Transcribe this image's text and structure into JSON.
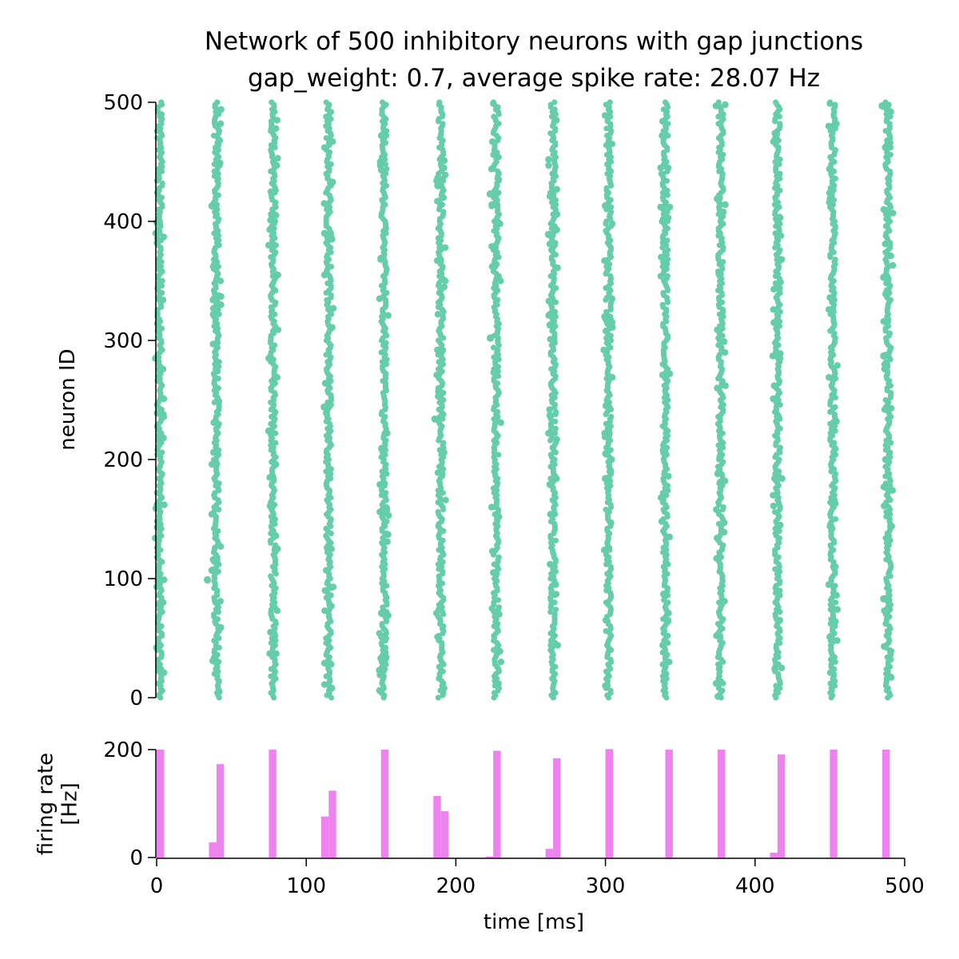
{
  "chart_data": [
    {
      "type": "scatter",
      "title": "Network of 500 inhibitory neurons with gap junctions",
      "subtitle": "gap_weight: 0.7, average spike rate: 28.07 Hz",
      "xlabel": "",
      "ylabel": "neuron ID",
      "xlim": [
        0,
        500
      ],
      "ylim": [
        0,
        500
      ],
      "y_ticks": [
        "0",
        "100",
        "200",
        "300",
        "400",
        "500"
      ],
      "grid": false,
      "color": "#66cdaa",
      "marker": "dot",
      "spike_volleys_ms": [
        2,
        40,
        78,
        115,
        152,
        190,
        227,
        265,
        302,
        340,
        377,
        415,
        452,
        489
      ],
      "outlier_spikes": [
        {
          "t": 34,
          "id": 99
        },
        {
          "t": 37,
          "id": 107
        },
        {
          "t": 38,
          "id": 116
        },
        {
          "t": 37,
          "id": 413
        },
        {
          "t": 38,
          "id": 322
        },
        {
          "t": 75,
          "id": 224
        },
        {
          "t": 112,
          "id": 244
        },
        {
          "t": 150,
          "id": 33
        },
        {
          "t": 149,
          "id": 23
        },
        {
          "t": 150,
          "id": 369
        },
        {
          "t": 186,
          "id": 234
        },
        {
          "t": 188,
          "id": 430
        },
        {
          "t": 223,
          "id": 302
        },
        {
          "t": 223,
          "id": 423
        },
        {
          "t": 262,
          "id": 389
        },
        {
          "t": 263,
          "id": 313
        },
        {
          "t": 263,
          "id": 237
        },
        {
          "t": 263,
          "id": 179
        },
        {
          "t": 300,
          "id": 184
        },
        {
          "t": 300,
          "id": 413
        },
        {
          "t": 339,
          "id": 87
        },
        {
          "t": 339,
          "id": 206
        },
        {
          "t": 339,
          "id": 402
        },
        {
          "t": 376,
          "id": 356
        },
        {
          "t": 377,
          "id": 181
        },
        {
          "t": 377,
          "id": 203
        },
        {
          "t": 415,
          "id": 236
        },
        {
          "t": 450,
          "id": 424
        },
        {
          "t": 486,
          "id": 353
        },
        {
          "t": 486,
          "id": 287
        },
        {
          "t": 486,
          "id": 83
        },
        {
          "t": 485,
          "id": 497
        }
      ]
    },
    {
      "type": "bar",
      "xlabel": "time [ms]",
      "ylabel": "firing rate\n[Hz]",
      "xlim": [
        0,
        500
      ],
      "ylim": [
        0,
        200
      ],
      "x_ticks": [
        "0",
        "100",
        "200",
        "300",
        "400",
        "500"
      ],
      "y_ticks": [
        "0",
        "200"
      ],
      "grid": false,
      "color": "#ee82ee",
      "bin_width_ms": 5,
      "bins": [
        {
          "t": 0,
          "value": 200
        },
        {
          "t": 35,
          "value": 28
        },
        {
          "t": 40,
          "value": 173
        },
        {
          "t": 75,
          "value": 200
        },
        {
          "t": 110,
          "value": 76
        },
        {
          "t": 115,
          "value": 124
        },
        {
          "t": 150,
          "value": 200
        },
        {
          "t": 185,
          "value": 114
        },
        {
          "t": 190,
          "value": 86
        },
        {
          "t": 220,
          "value": 2
        },
        {
          "t": 225,
          "value": 198
        },
        {
          "t": 260,
          "value": 16
        },
        {
          "t": 265,
          "value": 184
        },
        {
          "t": 300,
          "value": 201
        },
        {
          "t": 340,
          "value": 200
        },
        {
          "t": 375,
          "value": 200
        },
        {
          "t": 410,
          "value": 9
        },
        {
          "t": 415,
          "value": 191
        },
        {
          "t": 450,
          "value": 200
        },
        {
          "t": 485,
          "value": 200
        }
      ]
    }
  ]
}
